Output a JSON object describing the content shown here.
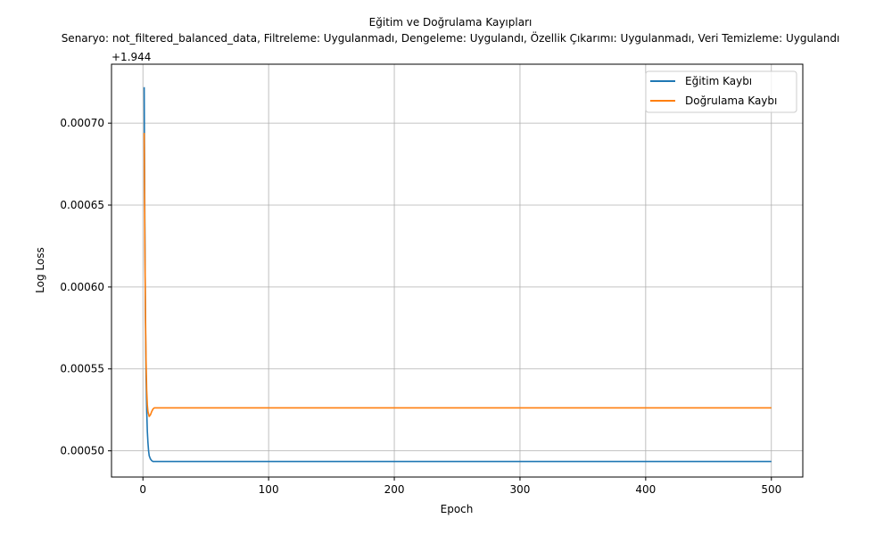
{
  "chart_data": {
    "type": "line",
    "title": "Eğitim ve Doğrulama Kayıpları",
    "subtitle": "Senaryo: not_filtered_balanced_data, Filtreleme: Uygulanmadı, Dengeleme: Uygulandı, Özellik Çıkarımı: Uygulanmadı, Veri Temizleme: Uygulandı",
    "xlabel": "Epoch",
    "ylabel": "Log Loss",
    "y_offset_label": "+1.944",
    "xlim": [
      -25,
      525
    ],
    "ylim": [
      0.000484,
      0.000736
    ],
    "xticks": [
      0,
      100,
      200,
      300,
      400,
      500
    ],
    "xtick_labels": [
      "0",
      "100",
      "200",
      "300",
      "400",
      "500"
    ],
    "yticks": [
      0.0005,
      0.00055,
      0.0006,
      0.00065,
      0.0007
    ],
    "ytick_labels": [
      "0.00050",
      "0.00055",
      "0.00060",
      "0.00065",
      "0.00070"
    ],
    "grid": true,
    "legend_position": "upper right",
    "series": [
      {
        "name": "Eğitim Kaybı",
        "color": "#1f77b4",
        "x": [
          1,
          1.5,
          2,
          2.5,
          3,
          3.5,
          4,
          4.5,
          5,
          6,
          7,
          8,
          10,
          15,
          20,
          50,
          100,
          200,
          300,
          400,
          500
        ],
        "y": [
          0.000722,
          0.00064,
          0.00058,
          0.000545,
          0.000525,
          0.000512,
          0.000505,
          0.0005,
          0.000497,
          0.000495,
          0.000494,
          0.0004935,
          0.0004935,
          0.0004935,
          0.0004935,
          0.0004935,
          0.0004935,
          0.0004935,
          0.0004935,
          0.0004935,
          0.0004935
        ]
      },
      {
        "name": "Doğrulama Kaybı",
        "color": "#ff7f0e",
        "x": [
          1,
          1.5,
          2,
          2.5,
          3,
          3.5,
          4,
          5,
          6,
          7,
          8,
          9,
          10,
          15,
          20,
          50,
          100,
          200,
          300,
          400,
          500
        ],
        "y": [
          0.000694,
          0.00063,
          0.000585,
          0.000555,
          0.000537,
          0.000528,
          0.000524,
          0.000521,
          0.000522,
          0.000524,
          0.0005255,
          0.0005262,
          0.0005262,
          0.0005262,
          0.0005262,
          0.0005262,
          0.0005262,
          0.0005262,
          0.0005262,
          0.0005262,
          0.0005262
        ]
      }
    ]
  }
}
